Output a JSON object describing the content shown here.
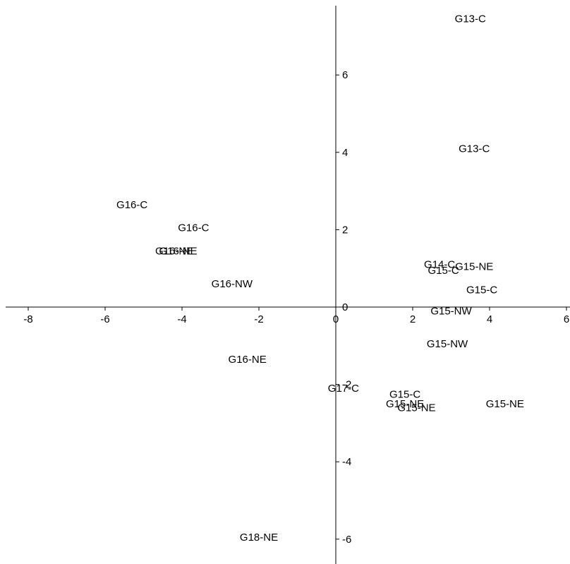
{
  "chart_data": {
    "type": "scatter",
    "title": "",
    "xlabel": "",
    "ylabel": "",
    "xlim": [
      -8.5,
      6
    ],
    "ylim": [
      -6.6,
      7.9
    ],
    "grid": false,
    "legend": "none",
    "x_ticks": [
      {
        "value": -8,
        "label": "-8"
      },
      {
        "value": -6,
        "label": "-6"
      },
      {
        "value": -4,
        "label": "-4"
      },
      {
        "value": -2,
        "label": "-2"
      },
      {
        "value": 0,
        "label": "0"
      },
      {
        "value": 2,
        "label": "2"
      },
      {
        "value": 4,
        "label": "4"
      },
      {
        "value": 6,
        "label": "6"
      }
    ],
    "y_ticks": [
      {
        "value": -6,
        "label": "-6"
      },
      {
        "value": -4,
        "label": "-4"
      },
      {
        "value": -2,
        "label": "-2"
      },
      {
        "value": 0,
        "label": "0"
      },
      {
        "value": 2,
        "label": "2"
      },
      {
        "value": 4,
        "label": "4"
      },
      {
        "value": 6,
        "label": "6"
      }
    ],
    "points": [
      {
        "label": "G13-C",
        "x": 3.5,
        "y": 7.45
      },
      {
        "label": "G13-C",
        "x": 3.6,
        "y": 4.1
      },
      {
        "label": "G16-C",
        "x": -5.3,
        "y": 2.65
      },
      {
        "label": "G16-C",
        "x": -3.7,
        "y": 2.05
      },
      {
        "label": "G16-NE",
        "x": -4.2,
        "y": 1.45
      },
      {
        "label": "G16-NE",
        "x": -4.1,
        "y": 1.45
      },
      {
        "label": "G16-NW",
        "x": -2.7,
        "y": 0.6
      },
      {
        "label": "G14-C",
        "x": 2.7,
        "y": 1.1
      },
      {
        "label": "G15-NE",
        "x": 3.6,
        "y": 1.05
      },
      {
        "label": "G15-C",
        "x": 2.8,
        "y": 0.95
      },
      {
        "label": "G15-C",
        "x": 3.8,
        "y": 0.45
      },
      {
        "label": "G15-NW",
        "x": 3.0,
        "y": -0.1
      },
      {
        "label": "G15-NW",
        "x": 2.9,
        "y": -0.95
      },
      {
        "label": "G16-NE",
        "x": -2.3,
        "y": -1.35
      },
      {
        "label": "G17-C",
        "x": 0.2,
        "y": -2.1
      },
      {
        "label": "G15-C",
        "x": 1.8,
        "y": -2.25
      },
      {
        "label": "G15-NE",
        "x": 1.8,
        "y": -2.5
      },
      {
        "label": "G15-NE",
        "x": 2.1,
        "y": -2.6
      },
      {
        "label": "G15-NE",
        "x": 4.4,
        "y": -2.5
      },
      {
        "label": "G18-NE",
        "x": -2.0,
        "y": -5.95
      }
    ]
  }
}
